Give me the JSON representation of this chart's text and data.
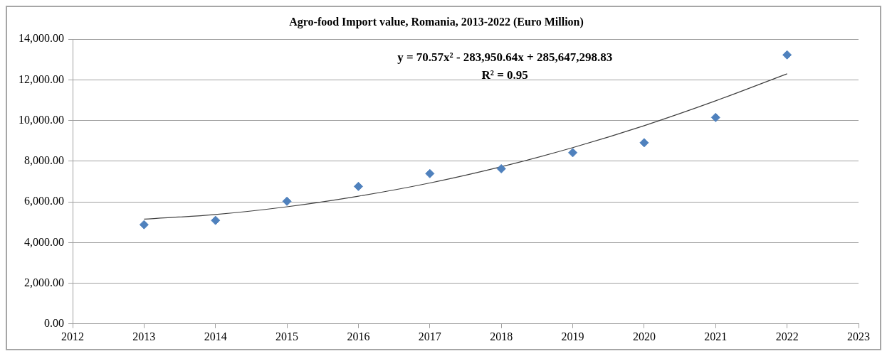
{
  "chart_data": {
    "type": "scatter",
    "title": "Agro-food Import value, Romania, 2013-2022 (Euro Million)",
    "x": [
      2013,
      2014,
      2015,
      2016,
      2017,
      2018,
      2019,
      2020,
      2021,
      2022
    ],
    "series": [
      {
        "color": "#4f81bd",
        "marker": "diamond",
        "values": [
          4880,
          5090,
          6030,
          6760,
          7390,
          7630,
          8420,
          8910,
          10150,
          13230
        ]
      },
      {
        "type": "line",
        "color": "#404040",
        "marker": "none",
        "line_style": "solid",
        "x": [
          2013,
          2014,
          2015,
          2016,
          2017,
          2018,
          2019,
          2020,
          2021,
          2022
        ],
        "values": [
          5150,
          5380,
          5760,
          6280,
          6930,
          7730,
          8670,
          9750,
          10970,
          12300
        ]
      }
    ],
    "xlim": [
      2012,
      2023
    ],
    "xticks": [
      2012,
      2013,
      2014,
      2015,
      2016,
      2017,
      2018,
      2019,
      2020,
      2021,
      2022,
      2023
    ],
    "ylim": [
      0,
      14000
    ],
    "yticks": [
      {
        "value": 0,
        "label": "0.00"
      },
      {
        "value": 2000,
        "label": "2,000.00"
      },
      {
        "value": 4000,
        "label": "4,000.00"
      },
      {
        "value": 6000,
        "label": "6,000.00"
      },
      {
        "value": 8000,
        "label": "8,000.00"
      },
      {
        "value": 10000,
        "label": "10,000.00"
      },
      {
        "value": 12000,
        "label": "12,000.00"
      },
      {
        "value": 14000,
        "label": "14,000.00"
      }
    ],
    "grid": "y",
    "legend": false,
    "annotations": [
      "y = 70.57x² - 283,950.64x + 285,647,298.83",
      "R² = 0.95"
    ]
  }
}
